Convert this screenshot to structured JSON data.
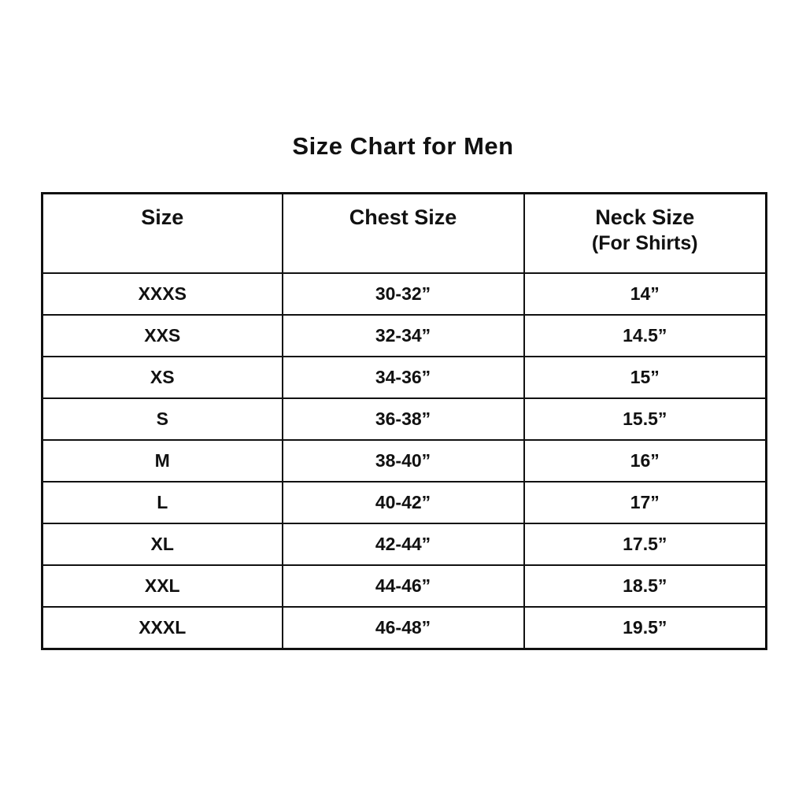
{
  "page_title": "Size Chart for Men",
  "chart_data": {
    "type": "table",
    "title": "Size Chart for Men",
    "columns": [
      {
        "label": "Size",
        "sublabel": ""
      },
      {
        "label": "Chest Size",
        "sublabel": ""
      },
      {
        "label": "Neck Size",
        "sublabel": "(For Shirts)"
      }
    ],
    "rows": [
      {
        "size": "XXXS",
        "chest": "30-32”",
        "neck": "14”"
      },
      {
        "size": "XXS",
        "chest": "32-34”",
        "neck": "14.5”"
      },
      {
        "size": "XS",
        "chest": "34-36”",
        "neck": "15”"
      },
      {
        "size": "S",
        "chest": "36-38”",
        "neck": "15.5”"
      },
      {
        "size": "M",
        "chest": "38-40”",
        "neck": "16”"
      },
      {
        "size": "L",
        "chest": "40-42”",
        "neck": "17”"
      },
      {
        "size": "XL",
        "chest": "42-44”",
        "neck": "17.5”"
      },
      {
        "size": "XXL",
        "chest": "44-46”",
        "neck": "18.5”"
      },
      {
        "size": "XXXL",
        "chest": "46-48”",
        "neck": "19.5”"
      }
    ],
    "layout": {
      "text_color": "#111111",
      "border_color": "#111111",
      "background_color": "#ffffff"
    }
  }
}
